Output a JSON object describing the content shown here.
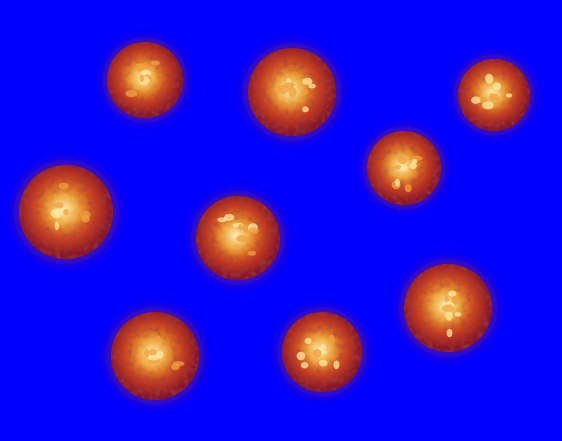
{
  "image": {
    "kind": "micrograph",
    "background_color": "#0000fe",
    "object_count": 9,
    "object_type": "cell",
    "palette": {
      "halo_outer": "#2a0a8a",
      "halo_mid": "#7a1a7a",
      "body_red": "#c0202a",
      "body_orange": "#e0601a",
      "core_yellow": "#f4c45a",
      "highlight": "#fff0b0",
      "dark_speckle": "#5a0f10"
    }
  }
}
